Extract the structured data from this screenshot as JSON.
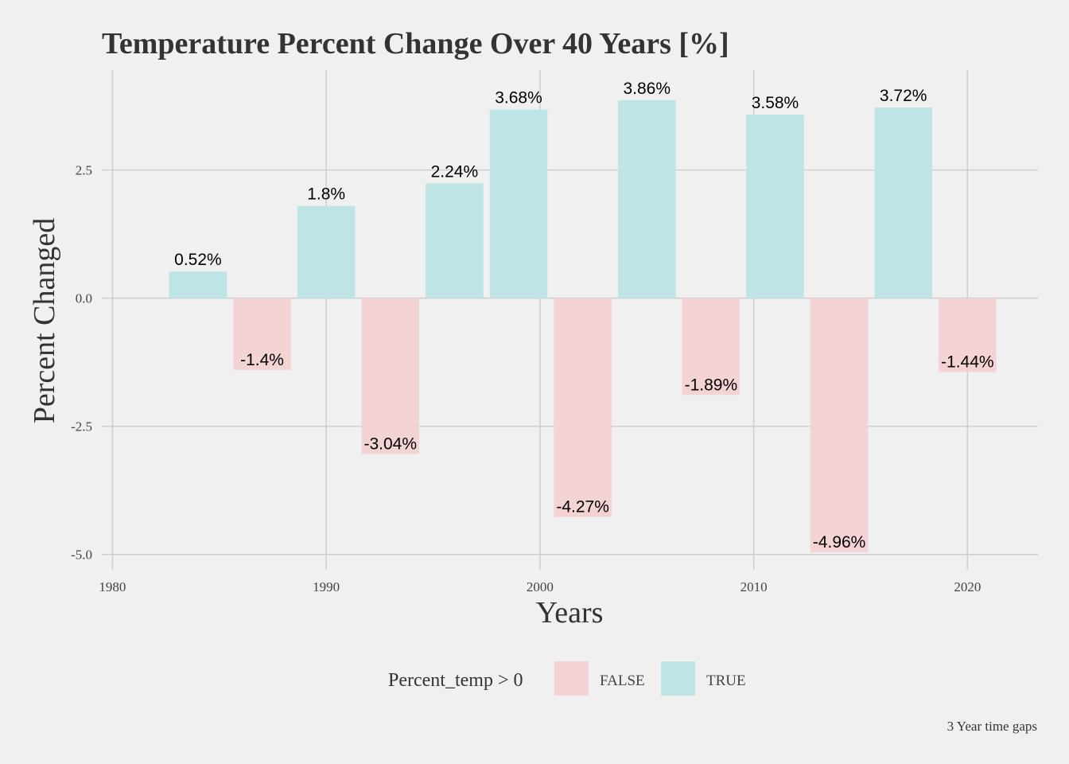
{
  "chart_data": {
    "type": "bar",
    "title": "Temperature Percent Change Over 40 Years [%]",
    "xlabel": "Years",
    "ylabel": "Percent Changed",
    "caption": "3 Year time gaps",
    "x": [
      1984,
      1987,
      1990,
      1993,
      1996,
      1999,
      2002,
      2005,
      2008,
      2011,
      2014,
      2017,
      2020
    ],
    "values": [
      0.52,
      -1.4,
      1.8,
      -3.04,
      2.24,
      3.68,
      -4.27,
      3.86,
      -1.89,
      3.58,
      -4.96,
      3.72,
      -1.44
    ],
    "labels": [
      "0.52%",
      "-1.4%",
      "1.8%",
      "-3.04%",
      "2.24%",
      "3.68%",
      "-4.27%",
      "3.86%",
      "-1.89%",
      "3.58%",
      "-4.96%",
      "3.72%",
      "-1.44%"
    ],
    "xlim": [
      1979.5,
      2023.3
    ],
    "ylim": [
      -5.3,
      4.45
    ],
    "x_ticks": [
      1980,
      1990,
      2000,
      2010,
      2020
    ],
    "x_tick_labels": [
      "1980",
      "1990",
      "2000",
      "2010",
      "2020"
    ],
    "y_ticks": [
      -5,
      -2.5,
      0,
      2.5
    ],
    "y_tick_labels": [
      "-5.0",
      "-2.5",
      "0.0",
      "2.5"
    ],
    "grid": true,
    "legend": {
      "title": "Percent_temp > 0",
      "position": "bottom",
      "entries": [
        {
          "label": "FALSE",
          "color": "#f4d3d5"
        },
        {
          "label": "TRUE",
          "color": "#bee4e5"
        }
      ]
    },
    "colors": {
      "false": "#f4d3d5",
      "true": "#bee4e5",
      "background": "#f0f0f0",
      "grid": "#cccccc"
    }
  }
}
